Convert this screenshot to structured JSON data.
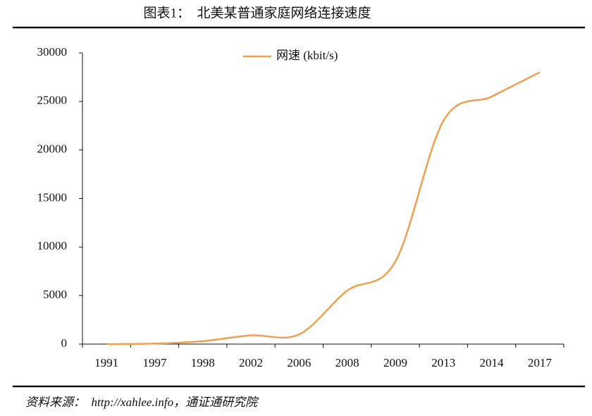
{
  "chart_data": {
    "type": "line",
    "title": "图表1：  北美某普通家庭网络连接速度",
    "source": "资料来源：  http://xahlee.info，通证通研究院",
    "categories": [
      "1991",
      "1997",
      "1998",
      "2002",
      "2006",
      "2008",
      "2009",
      "2013",
      "2014",
      "2017"
    ],
    "series": [
      {
        "name": "网速 (kbit/s)",
        "color": "#f0a050",
        "values": [
          0,
          50,
          300,
          900,
          1000,
          5500,
          8500,
          23000,
          25500,
          28000
        ]
      }
    ],
    "ylim": [
      0,
      30000
    ],
    "yticks": [
      0,
      5000,
      10000,
      15000,
      20000,
      25000,
      30000
    ],
    "grid": false,
    "legend": "top"
  }
}
